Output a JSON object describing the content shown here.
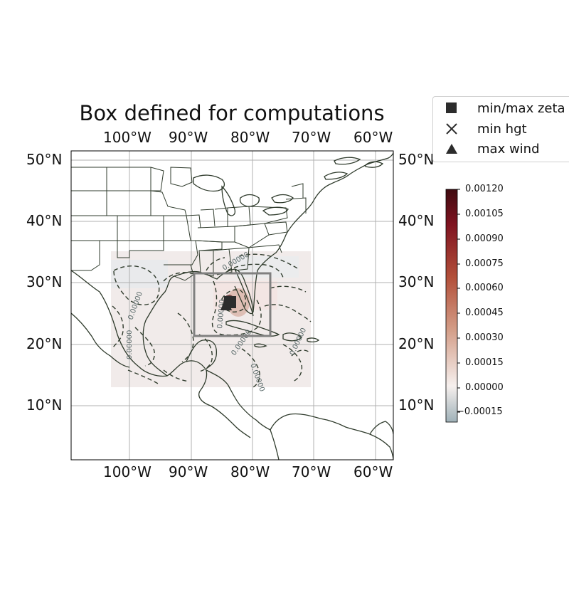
{
  "title": "Box defined for computations",
  "lon_ticks": [
    "100°W",
    "90°W",
    "80°W",
    "70°W",
    "60°W"
  ],
  "lat_ticks": [
    "50°N",
    "40°N",
    "30°N",
    "20°N",
    "10°N"
  ],
  "map_extent": {
    "lon": [
      -110,
      -57
    ],
    "lat": [
      1,
      51
    ]
  },
  "field_extent": {
    "lon": [
      -103.5,
      -71
    ],
    "lat": [
      13,
      35
    ]
  },
  "computation_box": {
    "lon": [
      -89.5,
      -77
    ],
    "lat": [
      21.3,
      31.5
    ]
  },
  "markers": {
    "min_max_zeta": {
      "lon": -83.5,
      "lat": 26.3
    },
    "max_wind": {
      "lon": -83.8,
      "lat": 26.3
    }
  },
  "contour_label": "0.00000",
  "legend": {
    "items": [
      {
        "label": "min/max zeta",
        "symbol": "square-icon"
      },
      {
        "label": "min hgt",
        "symbol": "cross-icon"
      },
      {
        "label": "max wind",
        "symbol": "triangle-icon"
      }
    ]
  },
  "colorbar": {
    "range": [
      -0.00022,
      0.0012
    ],
    "ticks": [
      "0.00120",
      "0.00105",
      "0.00090",
      "0.00075",
      "0.00060",
      "0.00045",
      "0.00030",
      "0.00015",
      "0.00000",
      "−0.00015"
    ],
    "tick_values": [
      0.0012,
      0.00105,
      0.0009,
      0.00075,
      0.0006,
      0.00045,
      0.0003,
      0.00015,
      0.0,
      -0.00015
    ],
    "colors": [
      "#9fb1b8",
      "#f6f0ee",
      "#d39c86",
      "#b3503a",
      "#7f1320",
      "#3f0a10"
    ]
  },
  "colors": {
    "coast": "#2f3b2c",
    "grid": "#b0b0b0",
    "box": "#808080",
    "marker": "#2c2c2c"
  }
}
